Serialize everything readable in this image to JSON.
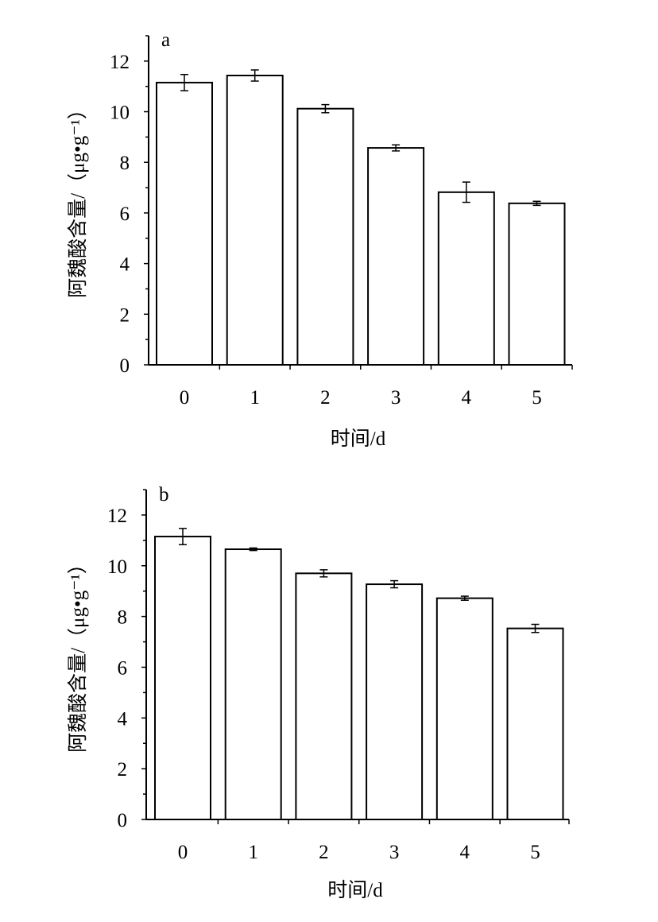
{
  "chart_data": [
    {
      "type": "bar",
      "panel_label": "a",
      "categories": [
        "0",
        "1",
        "2",
        "3",
        "4",
        "5"
      ],
      "values": [
        11.15,
        11.43,
        10.12,
        8.57,
        6.82,
        6.38
      ],
      "errors": [
        0.32,
        0.22,
        0.16,
        0.12,
        0.4,
        0.08
      ],
      "xlabel": "时间/d",
      "ylabel": "阿魏酸含量/（μg•g⁻¹）",
      "ylim": [
        0,
        13
      ],
      "yticks": [
        "0",
        "2",
        "4",
        "6",
        "8",
        "10",
        "12"
      ],
      "grid": false,
      "legend": "none"
    },
    {
      "type": "bar",
      "panel_label": "b",
      "categories": [
        "0",
        "1",
        "2",
        "3",
        "4",
        "5"
      ],
      "values": [
        11.15,
        10.65,
        9.7,
        9.27,
        8.72,
        7.53
      ],
      "errors": [
        0.32,
        0.05,
        0.14,
        0.14,
        0.08,
        0.16
      ],
      "xlabel": "时间/d",
      "ylabel": "阿魏酸含量/（μg•g⁻¹）",
      "ylim": [
        0,
        13
      ],
      "yticks": [
        "0",
        "2",
        "4",
        "6",
        "8",
        "10",
        "12"
      ],
      "grid": false,
      "legend": "none"
    }
  ]
}
